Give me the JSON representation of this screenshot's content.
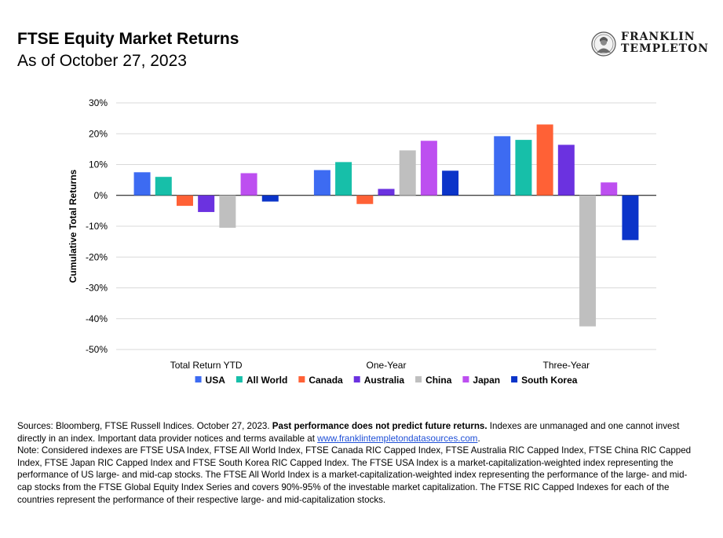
{
  "header": {
    "title": "FTSE Equity Market Returns",
    "subtitle": "As of October 27, 2023"
  },
  "logo": {
    "line1": "FRANKLIN",
    "line2": "TEMPLETON",
    "icon": "portrait-seal-icon"
  },
  "chart_data": {
    "type": "bar",
    "ylabel": "Cumulative Total Returns",
    "ylim": [
      -50,
      30
    ],
    "yticks": [
      30,
      20,
      10,
      0,
      -10,
      -20,
      -30,
      -40,
      -50
    ],
    "ytick_labels": [
      "30%",
      "20%",
      "10%",
      "0%",
      "-10%",
      "-20%",
      "-30%",
      "-40%",
      "-50%"
    ],
    "grid": true,
    "legend_position": "bottom",
    "categories": [
      "Total Return YTD",
      "One-Year",
      "Three-Year"
    ],
    "series": [
      {
        "name": "USA",
        "color": "#3D6BF2",
        "values": [
          7.5,
          8.2,
          19.2
        ]
      },
      {
        "name": "All World",
        "color": "#17BFA9",
        "values": [
          6.0,
          10.8,
          18.0
        ]
      },
      {
        "name": "Canada",
        "color": "#FF6136",
        "values": [
          -3.4,
          -2.8,
          23.0
        ]
      },
      {
        "name": "Australia",
        "color": "#6B32E0",
        "values": [
          -5.4,
          2.1,
          16.4
        ]
      },
      {
        "name": "China",
        "color": "#BFBFBF",
        "values": [
          -10.5,
          14.6,
          -42.5
        ]
      },
      {
        "name": "Japan",
        "color": "#BD4FF0",
        "values": [
          7.2,
          17.7,
          4.2
        ]
      },
      {
        "name": "South Korea",
        "color": "#0B34C9",
        "values": [
          -2.0,
          8.0,
          -14.5
        ]
      }
    ]
  },
  "notes": {
    "sources_a": "Sources: Bloomberg, FTSE Russell Indices. October 27, 2023. ",
    "sources_bold": "Past performance does not predict future returns.",
    "sources_b": " Indexes are unmanaged and one cannot invest directly in an index. Important data provider notices and terms available at ",
    "sources_link": "www.franklintempletondatasources.com",
    "sources_c": ".",
    "note": "Note: Considered indexes are FTSE USA Index, FTSE All World Index, FTSE Canada RIC Capped Index, FTSE Australia RIC Capped Index, FTSE China RIC Capped Index, FTSE Japan RIC Capped Index and FTSE South Korea RIC Capped Index. The FTSE USA Index is a market-capitalization-weighted index representing the performance of US large- and mid-cap stocks. The FTSE All World Index is a market-capitalization-weighted index representing the performance of the large- and mid-cap stocks from the FTSE Global Equity Index Series and covers 90%-95% of the investable market capitalization. The FTSE RIC Capped Indexes for each of the countries represent the performance of their respective large- and mid-capitalization stocks."
  }
}
